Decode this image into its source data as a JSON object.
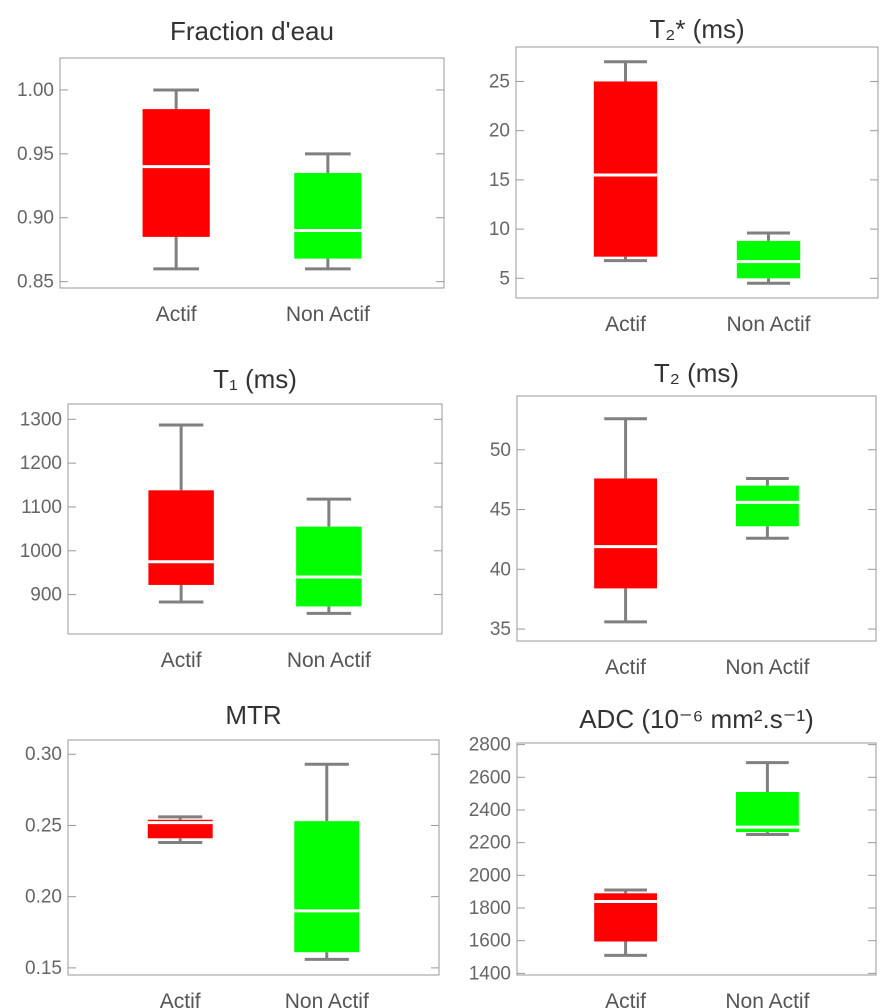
{
  "colors": {
    "actif": "#ff0000",
    "non_actif": "#00ff00",
    "whisker": "#808080",
    "median": "#ffffff"
  },
  "chart_data": [
    {
      "type": "box",
      "title": "Fraction d'eau",
      "categories": [
        "Actif",
        "Non Actif"
      ],
      "ylim": [
        0.845,
        1.025
      ],
      "yticks": [
        "0.85",
        "0.90",
        "0.95",
        "1.00"
      ],
      "boxes": [
        {
          "name": "Actif",
          "min": 0.86,
          "q1": 0.885,
          "median": 0.94,
          "q3": 0.985,
          "max": 1.0
        },
        {
          "name": "Non Actif",
          "min": 0.86,
          "q1": 0.868,
          "median": 0.89,
          "q3": 0.935,
          "max": 0.95
        }
      ]
    },
    {
      "type": "box",
      "title": "T₂* (ms)",
      "categories": [
        "Actif",
        "Non Actif"
      ],
      "ylim": [
        3,
        28.5
      ],
      "yticks": [
        "5",
        "10",
        "15",
        "20",
        "25"
      ],
      "boxes": [
        {
          "name": "Actif",
          "min": 6.8,
          "q1": 7.2,
          "median": 15.5,
          "q3": 25.0,
          "max": 27.0
        },
        {
          "name": "Non Actif",
          "min": 4.5,
          "q1": 5.0,
          "median": 6.7,
          "q3": 8.8,
          "max": 9.6
        }
      ]
    },
    {
      "type": "box",
      "title": "T₁ (ms)",
      "categories": [
        "Actif",
        "Non Actif"
      ],
      "ylim": [
        810,
        1335
      ],
      "yticks": [
        "900",
        "1000",
        "1100",
        "1200",
        "1300"
      ],
      "boxes": [
        {
          "name": "Actif",
          "min": 883,
          "q1": 922,
          "median": 975,
          "q3": 1138,
          "max": 1287
        },
        {
          "name": "Non Actif",
          "min": 857,
          "q1": 873,
          "median": 940,
          "q3": 1055,
          "max": 1118
        }
      ]
    },
    {
      "type": "box",
      "title": "T₂ (ms)",
      "categories": [
        "Actif",
        "Non Actif"
      ],
      "ylim": [
        34,
        54.5
      ],
      "yticks": [
        "35",
        "40",
        "45",
        "50"
      ],
      "boxes": [
        {
          "name": "Actif",
          "min": 35.6,
          "q1": 38.4,
          "median": 41.9,
          "q3": 47.6,
          "max": 52.6
        },
        {
          "name": "Non Actif",
          "min": 42.6,
          "q1": 43.6,
          "median": 45.6,
          "q3": 47.0,
          "max": 47.6
        }
      ]
    },
    {
      "type": "box",
      "title": "MTR",
      "categories": [
        "Actif",
        "Non Actif"
      ],
      "ylim": [
        0.145,
        0.31
      ],
      "yticks": [
        "0.15",
        "0.20",
        "0.25",
        "0.30"
      ],
      "boxes": [
        {
          "name": "Actif",
          "min": 0.238,
          "q1": 0.241,
          "median": 0.252,
          "q3": 0.254,
          "max": 0.256
        },
        {
          "name": "Non Actif",
          "min": 0.156,
          "q1": 0.161,
          "median": 0.19,
          "q3": 0.253,
          "max": 0.293
        }
      ]
    },
    {
      "type": "box",
      "title": "ADC (10⁻⁶ mm².s⁻¹)",
      "categories": [
        "Actif",
        "Non Actif"
      ],
      "ylim": [
        1390,
        2810
      ],
      "yticks": [
        "1400",
        "1600",
        "1800",
        "2000",
        "2200",
        "2400",
        "2600",
        "2800"
      ],
      "boxes": [
        {
          "name": "Actif",
          "min": 1510,
          "q1": 1595,
          "median": 1840,
          "q3": 1890,
          "max": 1910
        },
        {
          "name": "Non Actif",
          "min": 2250,
          "q1": 2265,
          "median": 2295,
          "q3": 2510,
          "max": 2690
        }
      ]
    }
  ]
}
